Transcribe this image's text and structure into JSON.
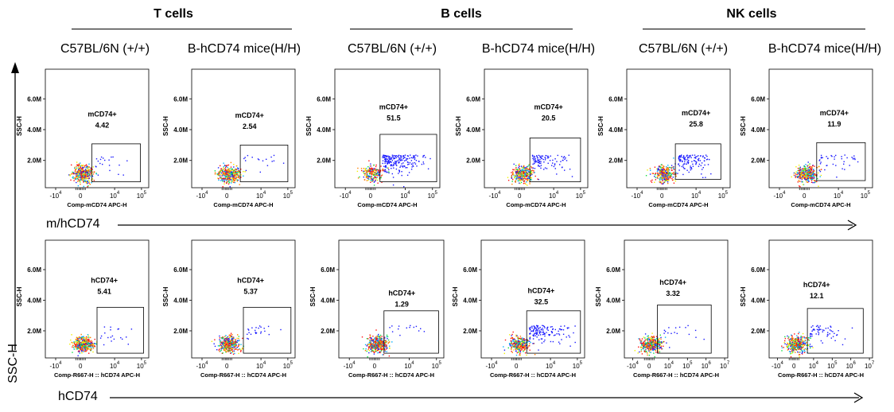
{
  "groups": [
    {
      "title": "T cells"
    },
    {
      "title": "B cells"
    },
    {
      "title": "NK cells"
    }
  ],
  "columns": [
    "C57BL/6N (+/+)",
    "B-hCD74 mice(H/H)",
    "C57BL/6N (+/+)",
    "B-hCD74 mice(H/H)",
    "C57BL/6N (+/+)",
    "B-hCD74 mice(H/H)"
  ],
  "row_axis_labels": {
    "top": "m/hCD74",
    "bottom": "hCD74",
    "y": "SSC-H"
  },
  "colors": {
    "scale": [
      "#1a1aff",
      "#00b0ff",
      "#10e040",
      "#f0f000",
      "#ff8000",
      "#ff1010"
    ]
  },
  "chart_data": [
    {
      "type": "scatter",
      "row": "top",
      "col": 0,
      "xlabel": "Comp-mCD74 APC-H",
      "ylabel": "SSC-H",
      "gate": "mCD74+",
      "value": "4.42",
      "yticks": [
        "2.0M",
        "4.0M",
        "6.0M"
      ],
      "xticks": [
        "-10^4",
        "0",
        "10^4",
        "10^5"
      ]
    },
    {
      "type": "scatter",
      "row": "top",
      "col": 1,
      "xlabel": "Comp-mCD74 APC-H",
      "ylabel": "SSC-H",
      "gate": "mCD74+",
      "value": "2.54",
      "yticks": [
        "2.0M",
        "4.0M",
        "6.0M"
      ],
      "xticks": [
        "-10^4",
        "0",
        "10^4",
        "10^5"
      ]
    },
    {
      "type": "scatter",
      "row": "top",
      "col": 2,
      "xlabel": "Comp-mCD74 APC-H",
      "ylabel": "SSC-H",
      "gate": "mCD74+",
      "value": "51.5",
      "yticks": [
        "2.0M",
        "4.0M",
        "6.0M"
      ],
      "xticks": [
        "-10^4",
        "0",
        "10^4",
        "10^5"
      ]
    },
    {
      "type": "scatter",
      "row": "top",
      "col": 3,
      "xlabel": "Comp-mCD74 APC-H",
      "ylabel": "SSC-H",
      "gate": "mCD74+",
      "value": "20.5",
      "yticks": [
        "2.0M",
        "4.0M",
        "6.0M"
      ],
      "xticks": [
        "-10^4",
        "0",
        "10^4",
        "10^5"
      ]
    },
    {
      "type": "scatter",
      "row": "top",
      "col": 4,
      "xlabel": "Comp-mCD74 APC-H",
      "ylabel": "SSC-H",
      "gate": "mCD74+",
      "value": "25.8",
      "yticks": [
        "2.0M",
        "4.0M",
        "6.0M"
      ],
      "xticks": [
        "-10^4",
        "0",
        "10^4",
        "10^5"
      ]
    },
    {
      "type": "scatter",
      "row": "top",
      "col": 5,
      "xlabel": "Comp-mCD74 APC-H",
      "ylabel": "SSC-H",
      "gate": "mCD74+",
      "value": "11.9",
      "yticks": [
        "2.0M",
        "4.0M",
        "6.0M"
      ],
      "xticks": [
        "-10^4",
        "0",
        "10^4",
        "10^5"
      ]
    },
    {
      "type": "scatter",
      "row": "bottom",
      "col": 0,
      "xlabel": "Comp-R667-H :: hCD74 APC-H",
      "ylabel": "SSC-H",
      "gate": "hCD74+",
      "value": "5.41",
      "yticks": [
        "2.0M",
        "4.0M",
        "6.0M"
      ],
      "xticks": [
        "-10^4",
        "0",
        "10^4",
        "10^5"
      ]
    },
    {
      "type": "scatter",
      "row": "bottom",
      "col": 1,
      "xlabel": "Comp-R667-H :: hCD74 APC-H",
      "ylabel": "SSC-H",
      "gate": "hCD74+",
      "value": "5.37",
      "yticks": [
        "2.0M",
        "4.0M",
        "6.0M"
      ],
      "xticks": [
        "-10^4",
        "0",
        "10^4",
        "10^5"
      ]
    },
    {
      "type": "scatter",
      "row": "bottom",
      "col": 2,
      "xlabel": "Comp-R667-H :: hCD74 APC-H",
      "ylabel": "SSC-H",
      "gate": "hCD74+",
      "value": "1.29",
      "yticks": [
        "2.0M",
        "4.0M",
        "6.0M"
      ],
      "xticks": [
        "-10^4",
        "0",
        "10^4",
        "10^5"
      ]
    },
    {
      "type": "scatter",
      "row": "bottom",
      "col": 3,
      "xlabel": "Comp-R667-H :: hCD74 APC-H",
      "ylabel": "SSC-H",
      "gate": "hCD74+",
      "value": "32.5",
      "yticks": [
        "2.0M",
        "4.0M",
        "6.0M"
      ],
      "xticks": [
        "-10^4",
        "0",
        "10^4",
        "10^5"
      ]
    },
    {
      "type": "scatter",
      "row": "bottom",
      "col": 4,
      "xlabel": "Comp-R667-H :: hCD74 APC-H",
      "ylabel": "SSC-H",
      "gate": "hCD74+",
      "value": "3.32",
      "yticks": [
        "2.0M",
        "4.0M",
        "6.0M"
      ],
      "xticks": [
        "-10^4",
        "0",
        "10^4",
        "10^5",
        "10^6",
        "10^7"
      ]
    },
    {
      "type": "scatter",
      "row": "bottom",
      "col": 5,
      "xlabel": "Comp-R667-H :: hCD74 APC-H",
      "ylabel": "SSC-H",
      "gate": "hCD74+",
      "value": "12.1",
      "yticks": [
        "2.0M",
        "4.0M",
        "6.0M"
      ],
      "xticks": [
        "-10^4",
        "0",
        "10^4",
        "10^5",
        "10^6",
        "10^7"
      ]
    }
  ]
}
